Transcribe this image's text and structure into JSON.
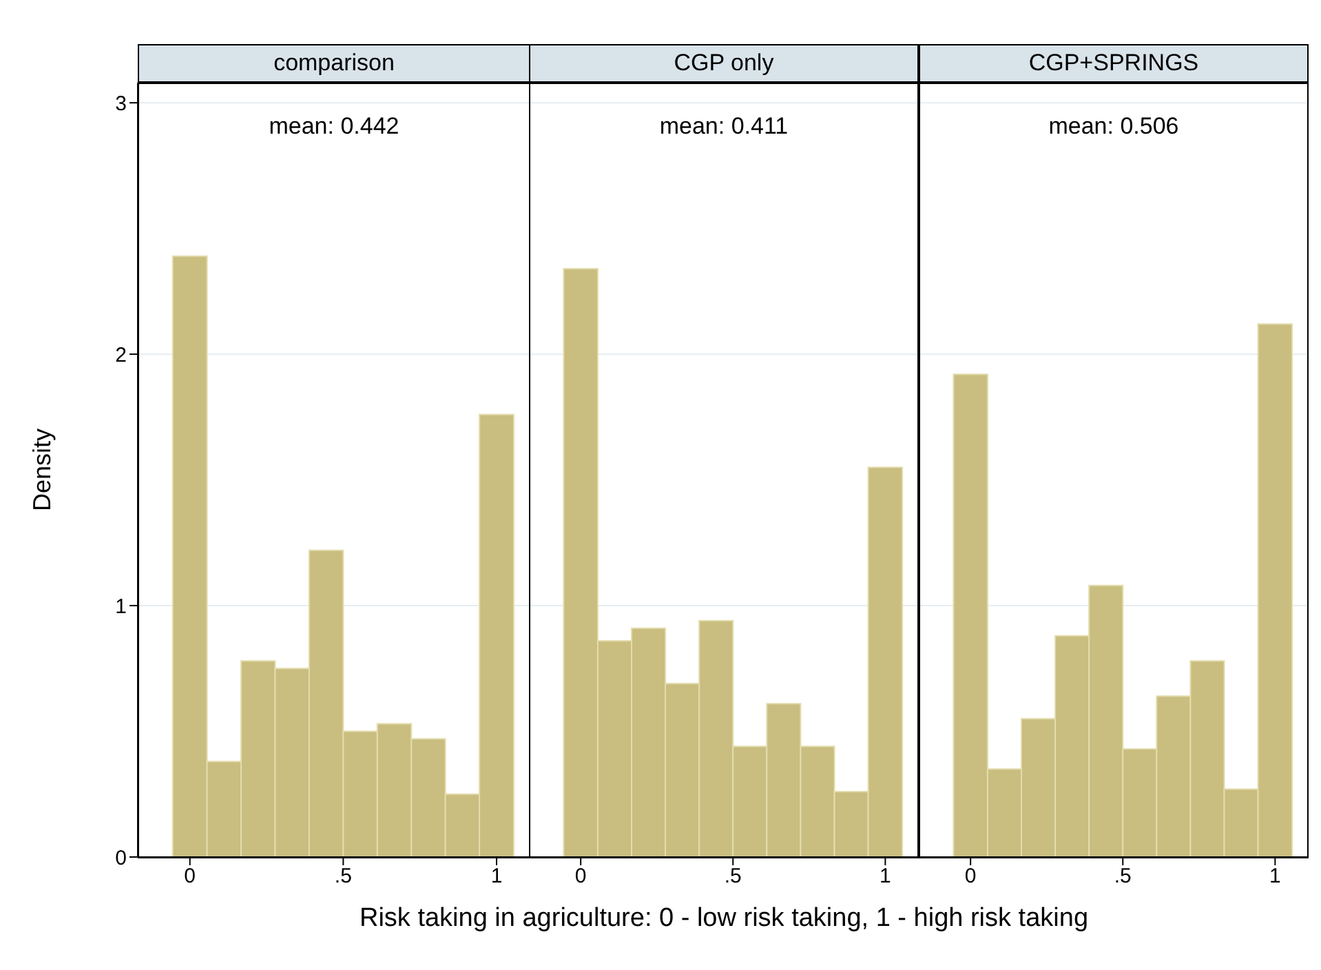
{
  "chart_data": [
    {
      "type": "histogram",
      "title": "comparison",
      "annotations": [
        "mean: 0.442"
      ],
      "ylabel": "Density",
      "bins": [
        -0.056,
        0.056,
        0.167,
        0.278,
        0.389,
        0.5,
        0.611,
        0.722,
        0.833,
        0.944,
        1.056
      ],
      "values": [
        2.39,
        0.38,
        0.78,
        0.75,
        1.22,
        0.5,
        0.53,
        0.47,
        0.25,
        1.76
      ],
      "color": "#c9be7f",
      "xlim": [
        -0.17,
        1.11
      ],
      "xticks": [
        {
          "value": 0,
          "label": "0"
        },
        {
          "value": 0.5,
          "label": ".5"
        },
        {
          "value": 1,
          "label": "1"
        }
      ],
      "ylim": [
        0,
        3.08
      ],
      "yticks": [
        0,
        1,
        2,
        3
      ],
      "grid": "y"
    },
    {
      "type": "histogram",
      "title": "CGP only",
      "annotations": [
        "mean: 0.411"
      ],
      "xlabel": "Risk taking in agriculture: 0 - low risk taking, 1 - high risk taking",
      "bins": [
        -0.056,
        0.056,
        0.167,
        0.278,
        0.389,
        0.5,
        0.611,
        0.722,
        0.833,
        0.944,
        1.056
      ],
      "values": [
        2.34,
        0.86,
        0.91,
        0.69,
        0.94,
        0.44,
        0.61,
        0.44,
        0.26,
        1.55
      ],
      "color": "#c9be7f",
      "xlim": [
        -0.17,
        1.11
      ],
      "xticks": [
        {
          "value": 0,
          "label": "0"
        },
        {
          "value": 0.5,
          "label": ".5"
        },
        {
          "value": 1,
          "label": "1"
        }
      ],
      "ylim": [
        0,
        3.08
      ],
      "yticks": [
        0,
        1,
        2,
        3
      ],
      "grid": "y",
      "tick_labels": "x"
    },
    {
      "type": "histogram",
      "title": "CGP+SPRINGS",
      "annotations": [
        "mean: 0.506"
      ],
      "bins": [
        -0.056,
        0.056,
        0.167,
        0.278,
        0.389,
        0.5,
        0.611,
        0.722,
        0.833,
        0.944,
        1.056
      ],
      "values": [
        1.92,
        0.35,
        0.55,
        0.88,
        1.08,
        0.43,
        0.64,
        0.78,
        0.27,
        2.12
      ],
      "color": "#c9be7f",
      "xlim": [
        -0.17,
        1.11
      ],
      "xticks": [
        {
          "value": 0,
          "label": "0"
        },
        {
          "value": 0.5,
          "label": ".5"
        },
        {
          "value": 1,
          "label": "1"
        }
      ],
      "ylim": [
        0,
        3.08
      ],
      "yticks": [
        0,
        1,
        2,
        3
      ],
      "grid": "y",
      "tick_labels": "x"
    }
  ]
}
